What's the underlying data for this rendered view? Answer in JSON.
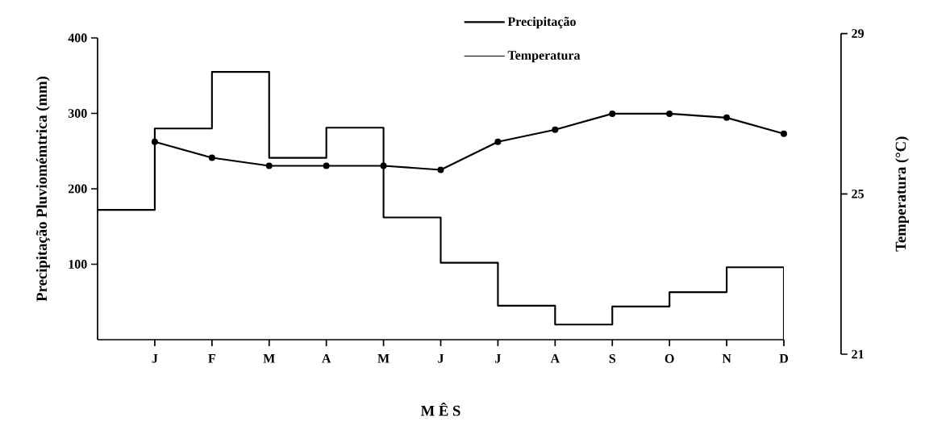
{
  "chart_data": {
    "type": "line",
    "xlabel": "M Ê S",
    "ylabel": "Precipitação Pluviomémtrica (mm)",
    "y2label": "Temperatura (°C)",
    "categories": [
      "J",
      "F",
      "M",
      "A",
      "M",
      "J",
      "J",
      "A",
      "S",
      "O",
      "N",
      "D"
    ],
    "series": [
      {
        "name": "Precipitação",
        "type": "step",
        "color": "#000000",
        "values": [
          172,
          280,
          355,
          241,
          281,
          162,
          102,
          45,
          20,
          44,
          63,
          96
        ]
      },
      {
        "name": "Temperatura",
        "axis": "y2",
        "marker": "circle",
        "color": "#000000",
        "values": [
          26.3,
          25.9,
          25.7,
          25.7,
          25.7,
          25.6,
          26.3,
          26.6,
          27.0,
          27.0,
          26.9,
          26.5
        ]
      }
    ],
    "ylim": [
      0,
      400
    ],
    "yticks": [
      100,
      200,
      300,
      400
    ],
    "y2lim": [
      21,
      29
    ],
    "y2ticks": [
      21,
      25,
      29
    ],
    "legend": "top"
  }
}
